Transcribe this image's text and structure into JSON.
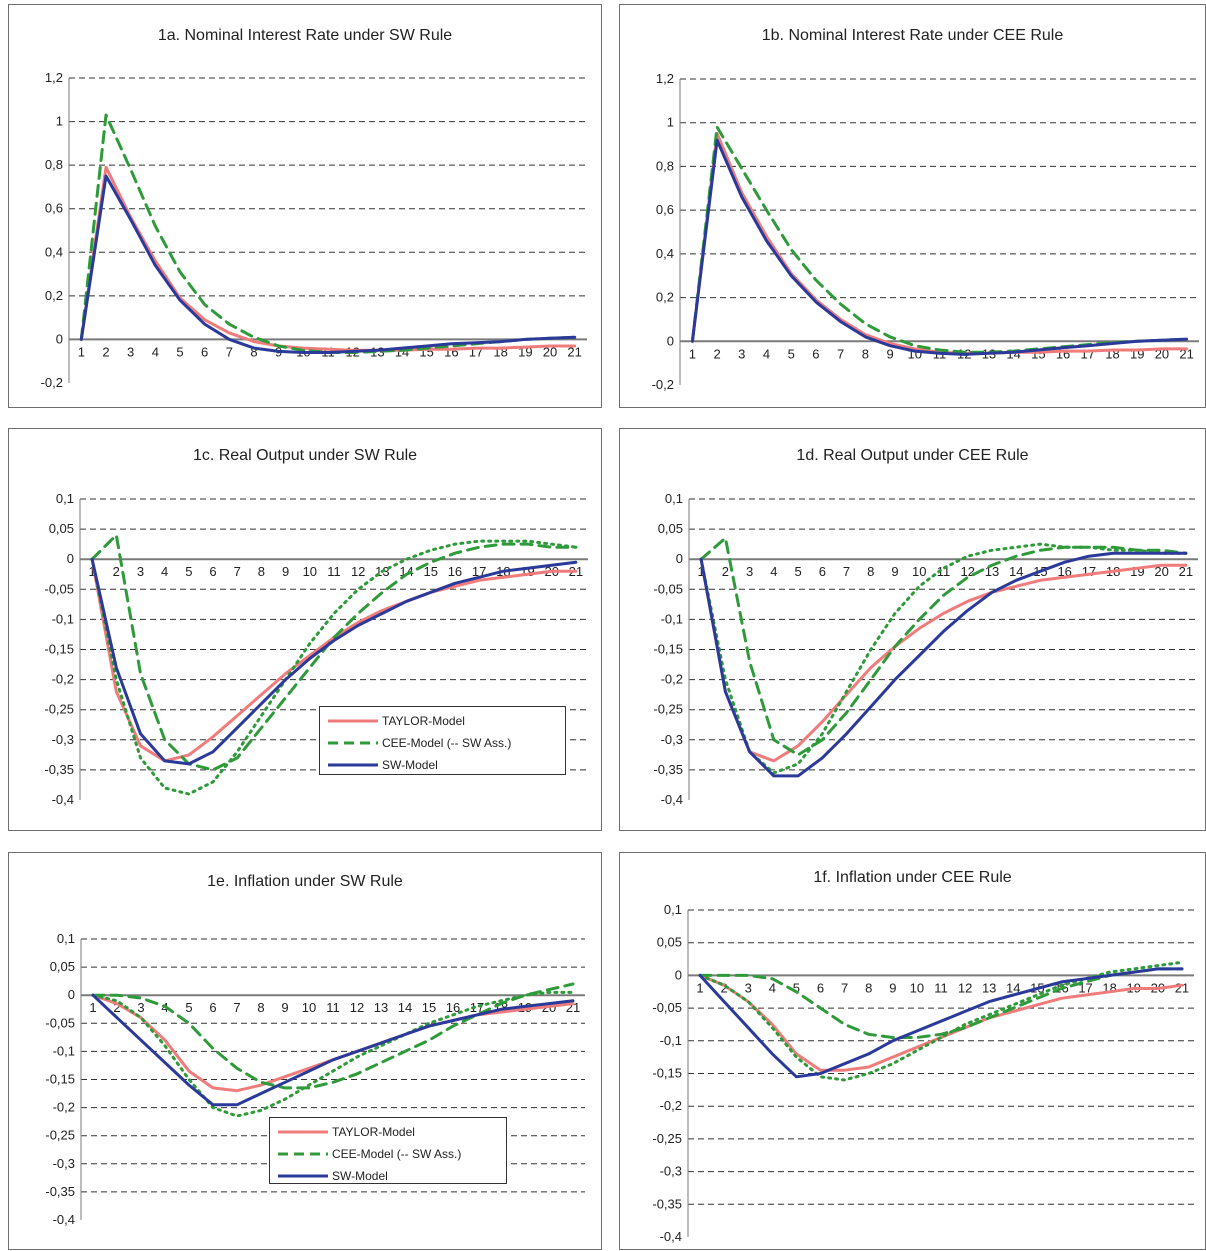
{
  "colors": {
    "taylor": "#f07b7b",
    "cee": "#2e9a3a",
    "sw": "#2b3a9a",
    "grid": "#333333",
    "axis": "#7a7a7a"
  },
  "legend": {
    "taylor": "TAYLOR-Model",
    "cee": "CEE-Model (-- SW Ass.)",
    "sw": "SW-Model"
  },
  "chart_data": [
    {
      "id": "1a",
      "type": "line",
      "title": "1a. Nominal Interest Rate under SW Rule",
      "x": [
        1,
        2,
        3,
        4,
        5,
        6,
        7,
        8,
        9,
        10,
        11,
        12,
        13,
        14,
        15,
        16,
        17,
        18,
        19,
        20,
        21
      ],
      "xticklabels": [
        "1",
        "2",
        "3",
        "4",
        "5",
        "6",
        "7",
        "8",
        "9",
        "10",
        "11",
        "12",
        "13",
        "14",
        "15",
        "16",
        "17",
        "18",
        "19",
        "20",
        "21"
      ],
      "ylim": [
        -0.2,
        1.2
      ],
      "yticks": [
        -0.2,
        0,
        0.2,
        0.4,
        0.6,
        0.8,
        1,
        1.2
      ],
      "yticklabels": [
        "-0,2",
        "0",
        "0,2",
        "0,4",
        "0,6",
        "0,8",
        "1",
        "1,2"
      ],
      "grid": "dashed-horizontal",
      "series": [
        {
          "key": "taylor",
          "style": "solid",
          "values": [
            0,
            0.79,
            0.56,
            0.36,
            0.19,
            0.09,
            0.03,
            -0.01,
            -0.03,
            -0.04,
            -0.045,
            -0.05,
            -0.05,
            -0.05,
            -0.045,
            -0.045,
            -0.04,
            -0.04,
            -0.035,
            -0.03,
            -0.03
          ]
        },
        {
          "key": "cee",
          "style": "dashed",
          "values": [
            0,
            1.03,
            0.78,
            0.52,
            0.31,
            0.16,
            0.07,
            0.01,
            -0.03,
            -0.05,
            -0.06,
            -0.06,
            -0.055,
            -0.05,
            -0.04,
            -0.03,
            -0.02,
            -0.01,
            0,
            0.005,
            0.01
          ]
        },
        {
          "key": "sw",
          "style": "solid",
          "values": [
            0,
            0.75,
            0.55,
            0.34,
            0.18,
            0.07,
            0,
            -0.04,
            -0.055,
            -0.06,
            -0.06,
            -0.055,
            -0.05,
            -0.04,
            -0.03,
            -0.02,
            -0.015,
            -0.01,
            0,
            0.005,
            0.01
          ]
        }
      ]
    },
    {
      "id": "1b",
      "type": "line",
      "title": "1b. Nominal Interest Rate under CEE Rule",
      "x": [
        1,
        2,
        3,
        4,
        5,
        6,
        7,
        8,
        9,
        10,
        11,
        12,
        13,
        14,
        15,
        16,
        17,
        18,
        19,
        20,
        21
      ],
      "xticklabels": [
        "1",
        "2",
        "3",
        "4",
        "5",
        "6",
        "7",
        "8",
        "9",
        "10",
        "11",
        "12",
        "13",
        "14",
        "15",
        "16",
        "17",
        "18",
        "19",
        "20",
        "21"
      ],
      "ylim": [
        -0.2,
        1.2
      ],
      "yticks": [
        -0.2,
        0,
        0.2,
        0.4,
        0.6,
        0.8,
        1,
        1.2
      ],
      "yticklabels": [
        "-0,2",
        "0",
        "0,2",
        "0,4",
        "0,6",
        "0,8",
        "1",
        "1,2"
      ],
      "grid": "dashed-horizontal",
      "series": [
        {
          "key": "taylor",
          "style": "solid",
          "values": [
            0,
            0.95,
            0.68,
            0.48,
            0.31,
            0.19,
            0.1,
            0.03,
            -0.01,
            -0.035,
            -0.05,
            -0.055,
            -0.055,
            -0.05,
            -0.05,
            -0.045,
            -0.045,
            -0.04,
            -0.04,
            -0.035,
            -0.035
          ]
        },
        {
          "key": "cee",
          "style": "dashed",
          "values": [
            0,
            0.98,
            0.79,
            0.6,
            0.42,
            0.28,
            0.17,
            0.08,
            0.02,
            -0.02,
            -0.04,
            -0.05,
            -0.05,
            -0.045,
            -0.035,
            -0.025,
            -0.015,
            -0.005,
            0,
            0.005,
            0.01
          ]
        },
        {
          "key": "sw",
          "style": "solid",
          "values": [
            0,
            0.92,
            0.66,
            0.46,
            0.3,
            0.18,
            0.09,
            0.02,
            -0.02,
            -0.045,
            -0.055,
            -0.06,
            -0.055,
            -0.05,
            -0.04,
            -0.03,
            -0.02,
            -0.01,
            0,
            0.005,
            0.01
          ]
        }
      ]
    },
    {
      "id": "1c",
      "type": "line",
      "title": "1c. Real Output under SW Rule",
      "x": [
        1,
        2,
        3,
        4,
        5,
        6,
        7,
        8,
        9,
        10,
        11,
        12,
        13,
        14,
        15,
        16,
        17,
        18,
        19,
        20,
        21
      ],
      "xticklabels": [
        "1",
        "2",
        "3",
        "4",
        "5",
        "6",
        "7",
        "8",
        "9",
        "10",
        "11",
        "12",
        "13",
        "14",
        "15",
        "16",
        "17",
        "18",
        "19",
        "20",
        "21"
      ],
      "ylim": [
        -0.4,
        0.1
      ],
      "yticks": [
        -0.4,
        -0.35,
        -0.3,
        -0.25,
        -0.2,
        -0.15,
        -0.1,
        -0.05,
        0,
        0.05,
        0.1
      ],
      "yticklabels": [
        "-0,4",
        "-0,35",
        "-0,3",
        "-0,25",
        "-0,2",
        "-0,15",
        "-0,1",
        "-0,05",
        "0",
        "0,05",
        "0,1"
      ],
      "grid": "dashed-horizontal",
      "legend": true,
      "series": [
        {
          "key": "taylor",
          "style": "solid",
          "values": [
            0,
            -0.22,
            -0.31,
            -0.335,
            -0.325,
            -0.295,
            -0.26,
            -0.225,
            -0.19,
            -0.16,
            -0.13,
            -0.105,
            -0.085,
            -0.07,
            -0.055,
            -0.045,
            -0.035,
            -0.03,
            -0.025,
            -0.02,
            -0.02
          ]
        },
        {
          "key": "cee",
          "style": "dashed",
          "values": [
            0,
            0.04,
            -0.19,
            -0.3,
            -0.34,
            -0.35,
            -0.33,
            -0.28,
            -0.23,
            -0.18,
            -0.13,
            -0.09,
            -0.055,
            -0.025,
            -0.005,
            0.01,
            0.02,
            0.025,
            0.025,
            0.02,
            0.02
          ]
        },
        {
          "key": "cee",
          "style": "dotted",
          "values": [
            0,
            -0.2,
            -0.33,
            -0.38,
            -0.39,
            -0.37,
            -0.32,
            -0.26,
            -0.2,
            -0.14,
            -0.09,
            -0.05,
            -0.02,
            0,
            0.015,
            0.025,
            0.03,
            0.03,
            0.03,
            0.025,
            0.02
          ]
        },
        {
          "key": "sw",
          "style": "solid",
          "values": [
            0,
            -0.18,
            -0.29,
            -0.335,
            -0.34,
            -0.32,
            -0.28,
            -0.24,
            -0.2,
            -0.165,
            -0.135,
            -0.11,
            -0.09,
            -0.07,
            -0.055,
            -0.04,
            -0.03,
            -0.02,
            -0.015,
            -0.01,
            -0.005
          ]
        }
      ]
    },
    {
      "id": "1d",
      "type": "line",
      "title": "1d. Real Output under CEE Rule",
      "x": [
        1,
        2,
        3,
        4,
        5,
        6,
        7,
        8,
        9,
        10,
        11,
        12,
        13,
        14,
        15,
        16,
        17,
        18,
        19,
        20,
        21
      ],
      "xticklabels": [
        "1",
        "2",
        "3",
        "4",
        "5",
        "6",
        "7",
        "8",
        "9",
        "10",
        "11",
        "12",
        "13",
        "14",
        "15",
        "16",
        "17",
        "18",
        "19",
        "20",
        "21"
      ],
      "ylim": [
        -0.4,
        0.1
      ],
      "yticks": [
        -0.4,
        -0.35,
        -0.3,
        -0.25,
        -0.2,
        -0.15,
        -0.1,
        -0.05,
        0,
        0.05,
        0.1
      ],
      "yticklabels": [
        "-0,4",
        "-0,35",
        "-0,3",
        "-0,25",
        "-0,2",
        "-0,15",
        "-0,1",
        "-0,05",
        "0",
        "0,05",
        "0,1"
      ],
      "grid": "dashed-horizontal",
      "series": [
        {
          "key": "taylor",
          "style": "solid",
          "values": [
            0,
            -0.22,
            -0.32,
            -0.335,
            -0.31,
            -0.27,
            -0.225,
            -0.18,
            -0.145,
            -0.115,
            -0.09,
            -0.07,
            -0.055,
            -0.045,
            -0.035,
            -0.03,
            -0.025,
            -0.02,
            -0.015,
            -0.01,
            -0.01
          ]
        },
        {
          "key": "cee",
          "style": "dashed",
          "values": [
            0,
            0.035,
            -0.17,
            -0.3,
            -0.325,
            -0.3,
            -0.255,
            -0.2,
            -0.145,
            -0.1,
            -0.06,
            -0.03,
            -0.01,
            0.005,
            0.015,
            0.02,
            0.02,
            0.02,
            0.015,
            0.015,
            0.01
          ]
        },
        {
          "key": "cee",
          "style": "dotted",
          "values": [
            0,
            -0.2,
            -0.32,
            -0.355,
            -0.34,
            -0.29,
            -0.22,
            -0.15,
            -0.09,
            -0.045,
            -0.015,
            0.005,
            0.015,
            0.02,
            0.025,
            0.02,
            0.02,
            0.015,
            0.015,
            0.01,
            0.01
          ]
        },
        {
          "key": "sw",
          "style": "solid",
          "values": [
            0,
            -0.22,
            -0.32,
            -0.36,
            -0.36,
            -0.33,
            -0.29,
            -0.245,
            -0.2,
            -0.16,
            -0.12,
            -0.085,
            -0.055,
            -0.035,
            -0.02,
            -0.005,
            0.005,
            0.01,
            0.01,
            0.01,
            0.01
          ]
        }
      ]
    },
    {
      "id": "1e",
      "type": "line",
      "title": "1e. Inflation under SW Rule",
      "x": [
        1,
        2,
        3,
        4,
        5,
        6,
        7,
        8,
        9,
        10,
        11,
        12,
        13,
        14,
        15,
        16,
        17,
        18,
        19,
        20,
        21
      ],
      "xticklabels": [
        "1",
        "2",
        "3",
        "4",
        "5",
        "6",
        "7",
        "8",
        "9",
        "10",
        "11",
        "12",
        "13",
        "14",
        "15",
        "16",
        "17",
        "18",
        "19",
        "20",
        "21"
      ],
      "ylim": [
        -0.4,
        0.1
      ],
      "yticks": [
        -0.4,
        -0.35,
        -0.3,
        -0.25,
        -0.2,
        -0.15,
        -0.1,
        -0.05,
        0,
        0.05,
        0.1
      ],
      "yticklabels": [
        "-0,4",
        "-0,35",
        "-0,3",
        "-0,25",
        "-0,2",
        "-0,15",
        "-0,1",
        "-0,05",
        "0",
        "0,05",
        "0,1"
      ],
      "grid": "dashed-horizontal",
      "legend": true,
      "series": [
        {
          "key": "taylor",
          "style": "solid",
          "values": [
            0,
            -0.015,
            -0.04,
            -0.08,
            -0.135,
            -0.165,
            -0.17,
            -0.16,
            -0.145,
            -0.13,
            -0.115,
            -0.1,
            -0.085,
            -0.07,
            -0.055,
            -0.045,
            -0.035,
            -0.03,
            -0.025,
            -0.02,
            -0.015
          ]
        },
        {
          "key": "cee",
          "style": "dashed",
          "values": [
            0,
            0,
            -0.005,
            -0.02,
            -0.05,
            -0.095,
            -0.13,
            -0.155,
            -0.165,
            -0.165,
            -0.155,
            -0.14,
            -0.12,
            -0.1,
            -0.08,
            -0.055,
            -0.035,
            -0.015,
            0,
            0.01,
            0.02
          ]
        },
        {
          "key": "cee",
          "style": "dotted",
          "values": [
            0,
            -0.01,
            -0.04,
            -0.09,
            -0.15,
            -0.2,
            -0.215,
            -0.205,
            -0.185,
            -0.16,
            -0.135,
            -0.11,
            -0.09,
            -0.07,
            -0.05,
            -0.035,
            -0.02,
            -0.01,
            0,
            0.005,
            0.005
          ]
        },
        {
          "key": "sw",
          "style": "solid",
          "values": [
            0,
            -0.04,
            -0.08,
            -0.12,
            -0.16,
            -0.195,
            -0.195,
            -0.175,
            -0.155,
            -0.135,
            -0.115,
            -0.1,
            -0.085,
            -0.07,
            -0.055,
            -0.045,
            -0.035,
            -0.025,
            -0.02,
            -0.015,
            -0.01
          ]
        }
      ]
    },
    {
      "id": "1f",
      "type": "line",
      "title": "1f. Inflation under CEE Rule",
      "x": [
        1,
        2,
        3,
        4,
        5,
        6,
        7,
        8,
        9,
        10,
        11,
        12,
        13,
        14,
        15,
        16,
        17,
        18,
        19,
        20,
        21
      ],
      "xticklabels": [
        "1",
        "2",
        "3",
        "4",
        "5",
        "6",
        "7",
        "8",
        "9",
        "10",
        "11",
        "12",
        "13",
        "14",
        "15",
        "16",
        "17",
        "18",
        "19",
        "20",
        "21"
      ],
      "ylim": [
        -0.4,
        0.1
      ],
      "yticks": [
        -0.4,
        -0.35,
        -0.3,
        -0.25,
        -0.2,
        -0.15,
        -0.1,
        -0.05,
        0,
        0.05,
        0.1
      ],
      "yticklabels": [
        "-0,4",
        "-0,35",
        "-0,3",
        "-0,25",
        "-0,2",
        "-0,15",
        "-0,1",
        "-0,05",
        "0",
        "0,05",
        "0,1"
      ],
      "grid": "dashed-horizontal",
      "series": [
        {
          "key": "taylor",
          "style": "solid",
          "values": [
            0,
            -0.015,
            -0.04,
            -0.075,
            -0.12,
            -0.145,
            -0.145,
            -0.14,
            -0.125,
            -0.11,
            -0.095,
            -0.08,
            -0.065,
            -0.055,
            -0.045,
            -0.035,
            -0.03,
            -0.025,
            -0.02,
            -0.02,
            -0.015
          ]
        },
        {
          "key": "cee",
          "style": "dashed",
          "values": [
            0,
            0,
            0,
            -0.005,
            -0.025,
            -0.05,
            -0.075,
            -0.09,
            -0.095,
            -0.095,
            -0.09,
            -0.08,
            -0.065,
            -0.05,
            -0.035,
            -0.02,
            -0.01,
            0,
            0.005,
            0.01,
            0.01
          ]
        },
        {
          "key": "cee",
          "style": "dotted",
          "values": [
            0,
            -0.015,
            -0.04,
            -0.08,
            -0.125,
            -0.155,
            -0.16,
            -0.15,
            -0.135,
            -0.115,
            -0.095,
            -0.075,
            -0.06,
            -0.045,
            -0.03,
            -0.015,
            -0.005,
            0.005,
            0.01,
            0.015,
            0.02
          ]
        },
        {
          "key": "sw",
          "style": "solid",
          "values": [
            0,
            -0.04,
            -0.08,
            -0.12,
            -0.155,
            -0.15,
            -0.135,
            -0.12,
            -0.1,
            -0.085,
            -0.07,
            -0.055,
            -0.04,
            -0.03,
            -0.02,
            -0.01,
            -0.005,
            0,
            0.005,
            0.01,
            0.01
          ]
        }
      ]
    }
  ]
}
